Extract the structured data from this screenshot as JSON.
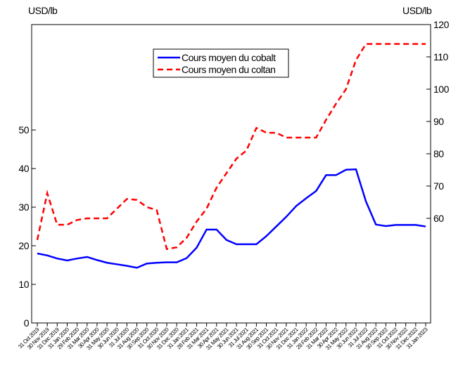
{
  "chart_data": {
    "type": "line",
    "ylabel": "USD/lb",
    "y2label": "USD/lb",
    "categories": [
      "31 Oct 2019",
      "30 Nov 2019",
      "31 Dec 2019",
      "31 Jan 2020",
      "29 Feb 2020",
      "31 Mar 2020",
      "30 Apr 2020",
      "31 May 2020",
      "30 Jun 2020",
      "31 Jul 2020",
      "31 Aug 2020",
      "30 Sep 2020",
      "31 Oct 2020",
      "30 Nov 2020",
      "31 Dec 2020",
      "31 Jan 2021",
      "28 Feb 2021",
      "31 Mar 2021",
      "30 Apr 2021",
      "31 May 2021",
      "30 Jun 2021",
      "31 Jul 2021",
      "31 Aug 2021",
      "30 Sep 2021",
      "31 Oct 2021",
      "30 Nov 2021",
      "31 Dec 2021",
      "31 Jan 2022",
      "28 Feb 2022",
      "31 Mar 2022",
      "30 Apr 2022",
      "31 May 2022",
      "30 Jun 2022",
      "31 Jul 2022",
      "31 Aug 2022",
      "30 Sep 2022",
      "31 Oct 2022",
      "30 Nov 2022",
      "31 Dec 2022",
      "31 Jan 2023"
    ],
    "series": [
      {
        "name": "Cours moyen du cobalt",
        "color": "#0000ff",
        "dash": false,
        "axis": "y",
        "values": [
          18,
          17.5,
          16.7,
          16.2,
          16.7,
          17.1,
          16.3,
          15.6,
          15.2,
          14.8,
          14.3,
          15.4,
          15.6,
          15.7,
          15.7,
          16.8,
          19.5,
          24.2,
          24.2,
          21.5,
          20.4,
          20.4,
          20.4,
          22.5,
          25,
          27.5,
          30.3,
          32.3,
          34.2,
          38.3,
          38.3,
          39.7,
          39.8,
          31.5,
          25.5,
          25.1,
          25.4,
          25.4,
          25.4,
          25
        ]
      },
      {
        "name": "Cours moyen du coltan",
        "color": "#ff0000",
        "dash": true,
        "axis": "y2",
        "values": [
          53.3,
          67.8,
          58,
          58,
          59.5,
          60,
          60,
          60,
          63,
          66,
          65.7,
          63.5,
          62.5,
          50.5,
          51,
          54,
          59,
          63,
          69.5,
          74,
          78.5,
          81,
          88,
          86.5,
          86.5,
          85,
          85,
          85,
          85,
          90.5,
          95.5,
          100,
          109,
          114,
          114,
          114,
          114,
          114,
          114,
          114
        ]
      }
    ],
    "ylim": [
      0,
      77.3
    ],
    "yticks": [
      0,
      10,
      20,
      30,
      40,
      50
    ],
    "y2lim": [
      27.6,
      120
    ],
    "y2ticks": [
      60,
      70,
      80,
      90,
      100,
      110,
      120
    ]
  }
}
